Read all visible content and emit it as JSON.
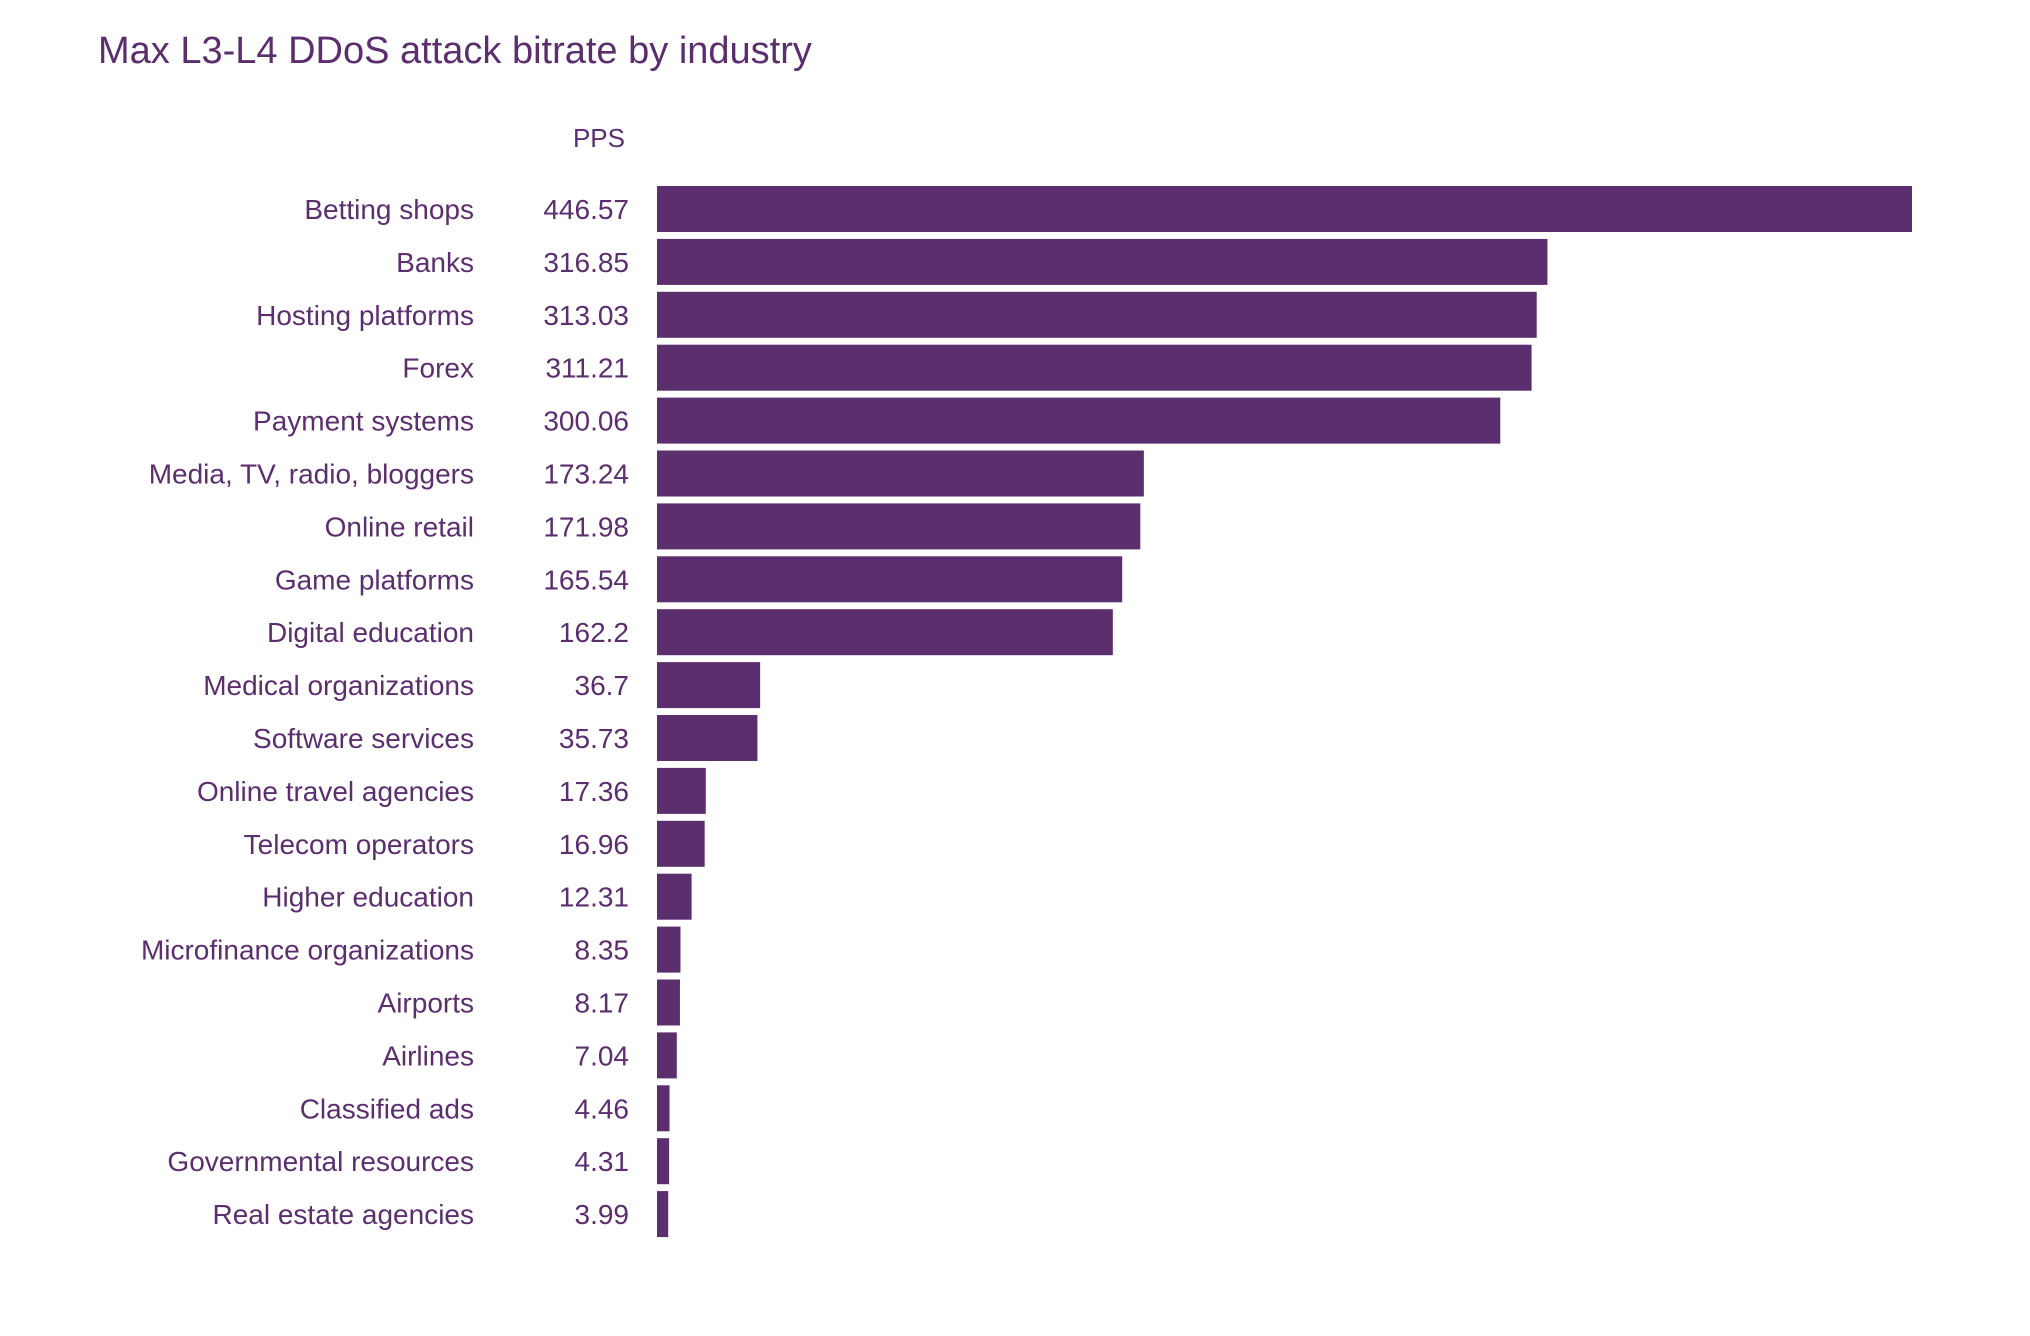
{
  "chart_data": {
    "type": "bar",
    "orientation": "horizontal",
    "title": "Max L3-L4 DDoS attack bitrate by industry",
    "value_column_header": "PPS",
    "categories": [
      "Betting shops",
      "Banks",
      "Hosting platforms",
      "Forex",
      "Payment systems",
      "Media, TV, radio, bloggers",
      "Online retail",
      "Game platforms",
      "Digital education",
      "Medical organizations",
      "Software services",
      "Online travel agencies",
      "Telecom operators",
      "Higher education",
      "Microfinance organizations",
      "Airports",
      "Airlines",
      "Classified ads",
      "Governmental resources",
      "Real estate agencies"
    ],
    "values": [
      446.57,
      316.85,
      313.03,
      311.21,
      300.06,
      173.24,
      171.98,
      165.54,
      162.2,
      36.7,
      35.73,
      17.36,
      16.96,
      12.31,
      8.35,
      8.17,
      7.04,
      4.46,
      4.31,
      3.99
    ],
    "value_labels": [
      "446.57",
      "316.85",
      "313.03",
      "311.21",
      "300.06",
      "173.24",
      "171.98",
      "165.54",
      "162.2",
      "36.7",
      "35.73",
      "17.36",
      "16.96",
      "12.31",
      "8.35",
      "8.17",
      "7.04",
      "4.46",
      "4.31",
      "3.99"
    ],
    "xlim": [
      0,
      446.57
    ],
    "grid": false,
    "legend": "none",
    "colors": {
      "bar": "#5b2e6e",
      "text": "#5b2e6e",
      "background": "#ffffff"
    }
  }
}
